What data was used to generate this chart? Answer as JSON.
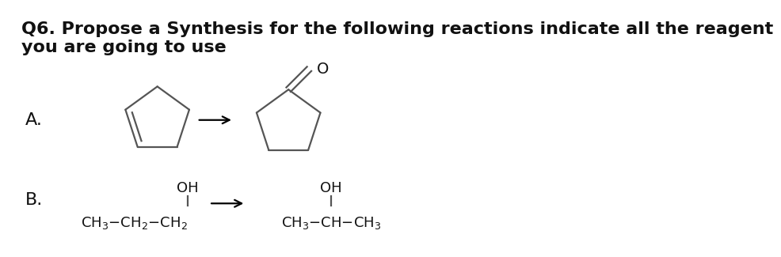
{
  "title_line1": "Q6. Propose a Synthesis for the following reactions indicate all the reagent",
  "title_line2": "you are going to use",
  "title_fontsize": 16,
  "bg_color": "#ffffff",
  "line_color": "#555555",
  "text_color": "#111111",
  "label_A": "A.",
  "label_B": "B.",
  "label_fontsize": 16,
  "fs_chem": 13
}
